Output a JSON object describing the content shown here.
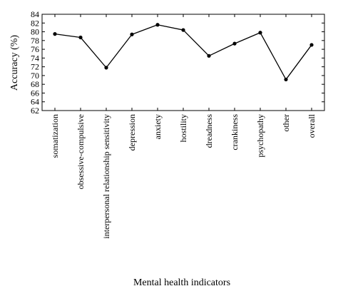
{
  "chart_data": {
    "type": "line",
    "title": "",
    "xlabel": "Mental health indicators",
    "ylabel": "Accuracy (%)",
    "ylim": [
      62,
      84
    ],
    "yticks": [
      62,
      64,
      66,
      68,
      70,
      72,
      74,
      76,
      78,
      80,
      82,
      84
    ],
    "grid": false,
    "categories": [
      "somatization",
      "obsessive-compulsive",
      "interpersonal relationship sensitivity",
      "depression",
      "anxiety",
      "hostility",
      "dreadness",
      "crankiness",
      "psychopathy",
      "other",
      "overall"
    ],
    "series": [
      {
        "values": [
          79.5,
          78.7,
          71.8,
          79.4,
          81.6,
          80.4,
          74.5,
          77.3,
          79.8,
          69.1,
          77.0
        ]
      }
    ],
    "colors": {
      "line": "#000000",
      "marker": "#000000",
      "axis": "#000000"
    }
  }
}
